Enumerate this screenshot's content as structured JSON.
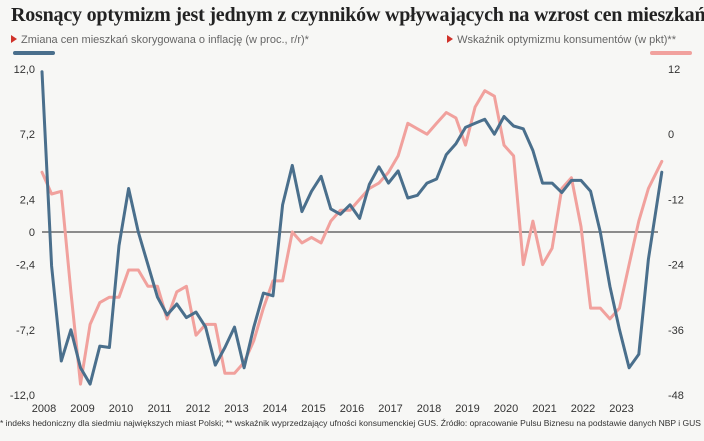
{
  "chart_data": {
    "type": "line",
    "title": "Rosnący optymizm jest jednym z czynników wpływających na wzrost cen mieszkań",
    "x_range": [
      2008,
      2024
    ],
    "x_ticks": [
      "2008",
      "2009",
      "2010",
      "2011",
      "2012",
      "2013",
      "2014",
      "2015",
      "2016",
      "2017",
      "2018",
      "2019",
      "2020",
      "2021",
      "2022",
      "2023"
    ],
    "y_left": {
      "ticks": [
        "12,0",
        "7,2",
        "2,4",
        "0",
        "-2,4",
        "-7,2",
        "-12,0"
      ],
      "range": [
        -12,
        12
      ]
    },
    "y_right": {
      "ticks": [
        "12",
        "0",
        "-12",
        "-24",
        "-36",
        "-48"
      ],
      "range": [
        -48,
        12
      ]
    },
    "grid": false,
    "series": [
      {
        "name": "Zmiana cen mieszkań skorygowana o inflację (w proc., r/r)*",
        "axis": "left",
        "color": "#4a6f8c",
        "points": [
          [
            2008.0,
            11.8
          ],
          [
            2008.25,
            -2.5
          ],
          [
            2008.5,
            -9.5
          ],
          [
            2008.75,
            -7.2
          ],
          [
            2009.0,
            -10.0
          ],
          [
            2009.25,
            -11.2
          ],
          [
            2009.5,
            -8.4
          ],
          [
            2009.75,
            -8.5
          ],
          [
            2010.0,
            -1.0
          ],
          [
            2010.25,
            3.2
          ],
          [
            2010.5,
            0.0
          ],
          [
            2010.75,
            -2.4
          ],
          [
            2011.0,
            -4.8
          ],
          [
            2011.25,
            -6.1
          ],
          [
            2011.5,
            -5.3
          ],
          [
            2011.75,
            -6.3
          ],
          [
            2012.0,
            -5.9
          ],
          [
            2012.25,
            -7.0
          ],
          [
            2012.5,
            -9.8
          ],
          [
            2012.75,
            -8.5
          ],
          [
            2013.0,
            -7.0
          ],
          [
            2013.25,
            -10.0
          ],
          [
            2013.5,
            -7.0
          ],
          [
            2013.75,
            -4.5
          ],
          [
            2014.0,
            -4.7
          ],
          [
            2014.25,
            2.0
          ],
          [
            2014.5,
            4.9
          ],
          [
            2014.75,
            1.5
          ],
          [
            2015.0,
            3.0
          ],
          [
            2015.25,
            4.1
          ],
          [
            2015.5,
            1.7
          ],
          [
            2015.75,
            1.3
          ],
          [
            2016.0,
            2.0
          ],
          [
            2016.25,
            1.0
          ],
          [
            2016.5,
            3.5
          ],
          [
            2016.75,
            4.8
          ],
          [
            2017.0,
            3.6
          ],
          [
            2017.25,
            4.5
          ],
          [
            2017.5,
            2.5
          ],
          [
            2017.75,
            2.7
          ],
          [
            2018.0,
            3.6
          ],
          [
            2018.25,
            3.9
          ],
          [
            2018.5,
            5.7
          ],
          [
            2018.75,
            6.5
          ],
          [
            2019.0,
            7.7
          ],
          [
            2019.25,
            8.0
          ],
          [
            2019.5,
            8.3
          ],
          [
            2019.75,
            7.2
          ],
          [
            2020.0,
            8.5
          ],
          [
            2020.25,
            7.8
          ],
          [
            2020.5,
            7.6
          ],
          [
            2020.75,
            6.0
          ],
          [
            2021.0,
            3.6
          ],
          [
            2021.25,
            3.6
          ],
          [
            2021.5,
            2.9
          ],
          [
            2021.75,
            3.8
          ],
          [
            2022.0,
            3.8
          ],
          [
            2022.25,
            3.0
          ],
          [
            2022.5,
            0.0
          ],
          [
            2022.75,
            -4.0
          ],
          [
            2023.0,
            -7.2
          ],
          [
            2023.25,
            -10.0
          ],
          [
            2023.5,
            -9.0
          ],
          [
            2023.75,
            -2.0
          ],
          [
            2024.1,
            4.4
          ]
        ]
      },
      {
        "name": "Wskaźnik optymizmu konsumentów (w pkt)**",
        "axis": "right",
        "color": "#f1a19d",
        "points": [
          [
            2008.0,
            -7
          ],
          [
            2008.25,
            -11
          ],
          [
            2008.5,
            -10.5
          ],
          [
            2008.75,
            -29
          ],
          [
            2009.0,
            -46
          ],
          [
            2009.25,
            -35
          ],
          [
            2009.5,
            -31
          ],
          [
            2009.75,
            -30
          ],
          [
            2010.0,
            -30
          ],
          [
            2010.25,
            -25
          ],
          [
            2010.5,
            -25
          ],
          [
            2010.75,
            -28
          ],
          [
            2011.0,
            -28
          ],
          [
            2011.25,
            -34
          ],
          [
            2011.5,
            -29
          ],
          [
            2011.75,
            -28
          ],
          [
            2012.0,
            -37
          ],
          [
            2012.25,
            -35
          ],
          [
            2012.5,
            -35
          ],
          [
            2012.75,
            -44
          ],
          [
            2013.0,
            -44
          ],
          [
            2013.25,
            -42
          ],
          [
            2013.5,
            -38
          ],
          [
            2013.75,
            -32
          ],
          [
            2014.0,
            -27
          ],
          [
            2014.25,
            -27
          ],
          [
            2014.5,
            -18
          ],
          [
            2014.75,
            -20
          ],
          [
            2015.0,
            -19
          ],
          [
            2015.25,
            -20
          ],
          [
            2015.5,
            -16
          ],
          [
            2015.75,
            -14
          ],
          [
            2016.0,
            -14
          ],
          [
            2016.25,
            -12
          ],
          [
            2016.5,
            -10
          ],
          [
            2016.75,
            -9
          ],
          [
            2017.0,
            -7
          ],
          [
            2017.25,
            -4
          ],
          [
            2017.5,
            2
          ],
          [
            2017.75,
            1
          ],
          [
            2018.0,
            0
          ],
          [
            2018.25,
            2
          ],
          [
            2018.5,
            4
          ],
          [
            2018.75,
            3
          ],
          [
            2019.0,
            -2
          ],
          [
            2019.25,
            5
          ],
          [
            2019.5,
            8
          ],
          [
            2019.75,
            7
          ],
          [
            2020.0,
            -2
          ],
          [
            2020.25,
            -4
          ],
          [
            2020.5,
            -24
          ],
          [
            2020.75,
            -16
          ],
          [
            2021.0,
            -24
          ],
          [
            2021.25,
            -21
          ],
          [
            2021.5,
            -10
          ],
          [
            2021.75,
            -8
          ],
          [
            2022.0,
            -17
          ],
          [
            2022.25,
            -32
          ],
          [
            2022.5,
            -32
          ],
          [
            2022.75,
            -34
          ],
          [
            2023.0,
            -32
          ],
          [
            2023.25,
            -24
          ],
          [
            2023.5,
            -16
          ],
          [
            2023.75,
            -10
          ],
          [
            2024.1,
            -5
          ]
        ]
      }
    ]
  },
  "footnote": "* indeks hedoniczny dla siedmiu największych miast Polski; ** wskaźnik wyprzedzający ufności konsumenckiej GUS. Źródło: opracowanie Pulsu Biznesu na podstawie danych NBP i GUS"
}
